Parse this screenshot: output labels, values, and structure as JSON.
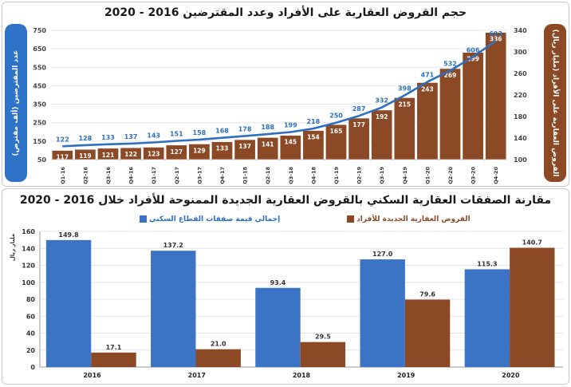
{
  "top_title": "حجم القروض العقارية على الأفراد وعدد المقترضين 2016 - 2020",
  "bottom_title": "مقارنة الصفقات العقارية السكني بالقروض العقارية الجديدة الممنوحة للأفراد خلال 2016 - 2020",
  "colors": {
    "blue": "#3b74c4",
    "brown": "#8b4a25",
    "line": "#2e6fbf"
  },
  "chart_data": [
    {
      "type": "bar+line",
      "title": "حجم القروض العقارية على الأفراد وعدد المقترضين 2016 - 2020",
      "categories": [
        "Q1-16",
        "Q2-16",
        "Q3-16",
        "Q4-16",
        "Q1-17",
        "Q2-17",
        "Q3-17",
        "Q4-17",
        "Q1-18",
        "Q2-18",
        "Q3-18",
        "Q4-18",
        "Q1-19",
        "Q2-19",
        "Q3-19",
        "Q4-19",
        "Q1-20",
        "Q2-20",
        "Q3-20",
        "Q4-20"
      ],
      "bar_series": {
        "name": "",
        "values": [
          117,
          119,
          121,
          122,
          123,
          127,
          129,
          133,
          137,
          141,
          145,
          154,
          165,
          177,
          192,
          215,
          243,
          269,
          299,
          336
        ]
      },
      "line_series": {
        "name": "",
        "values": [
          122,
          128,
          133,
          137,
          143,
          151,
          158,
          168,
          178,
          188,
          199,
          218,
          250,
          287,
          332,
          398,
          471,
          532,
          606,
          693
        ]
      },
      "left_axis": {
        "label": "عدد المقترضين (ألف مقترض)",
        "ticks": [
          50,
          150,
          250,
          350,
          450,
          550,
          650,
          750
        ],
        "ylim": [
          50,
          750
        ]
      },
      "right_axis": {
        "label": "القروض العقارية على الأفراد (مليار ريال)",
        "ticks": [
          100,
          140,
          180,
          220,
          260,
          300,
          340
        ],
        "ylim": [
          100,
          340
        ]
      }
    },
    {
      "type": "bar",
      "title": "مقارنة الصفقات العقارية السكني بالقروض العقارية الجديدة الممنوحة للأفراد خلال 2016 - 2020",
      "categories": [
        "2016",
        "2017",
        "2018",
        "2019",
        "2020"
      ],
      "series": [
        {
          "name": "إجمالي قيمة صفقات القطاع السكني",
          "values": [
            149.8,
            137.2,
            93.4,
            127.0,
            115.3
          ],
          "labels": [
            "149.8",
            "137.2",
            "93.4",
            "127.0",
            "115.3"
          ]
        },
        {
          "name": "القروض العقارية الجديدة للأفراد",
          "values": [
            17.1,
            21.0,
            29.5,
            79.6,
            140.7
          ],
          "labels": [
            "17.1",
            "21.0",
            "29.5",
            "79.6",
            "140.7"
          ]
        }
      ],
      "ylabel": "مليار ريال",
      "ylim": [
        0,
        160
      ],
      "yticks": [
        0,
        20,
        40,
        60,
        80,
        100,
        120,
        140,
        160
      ]
    }
  ]
}
